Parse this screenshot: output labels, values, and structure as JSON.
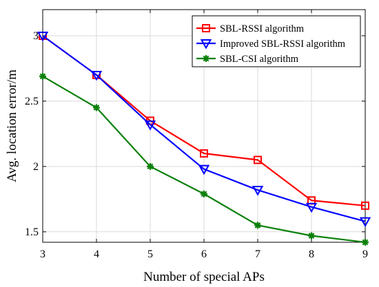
{
  "chart_data": {
    "type": "line",
    "xlabel": "Number of special APs",
    "ylabel": "Avg. location error/m",
    "x": [
      3,
      4,
      5,
      6,
      7,
      8,
      9
    ],
    "xlim": [
      3,
      9
    ],
    "ylim": [
      1.42,
      3.2
    ],
    "xticks": [
      "3",
      "4",
      "5",
      "6",
      "7",
      "8",
      "9"
    ],
    "yticks": [
      1.5,
      2,
      2.5,
      3
    ],
    "ytick_labels": [
      "1.5",
      "2",
      "2.5",
      "3"
    ],
    "grid": true,
    "legend_position": "top-right",
    "series": [
      {
        "name": "SBL-RSSI algorithm",
        "color": "#ff0000",
        "marker": "square",
        "values": [
          3.0,
          2.7,
          2.35,
          2.1,
          2.05,
          1.74,
          1.7
        ]
      },
      {
        "name": "Improved SBL-RSSI algorithm",
        "color": "#0000ff",
        "marker": "triangle-down",
        "values": [
          3.0,
          2.7,
          2.32,
          1.98,
          1.82,
          1.69,
          1.58
        ]
      },
      {
        "name": "SBL-CSI algorithm",
        "color": "#0a800a",
        "marker": "asterisk",
        "values": [
          2.69,
          2.45,
          2.0,
          1.79,
          1.55,
          1.47,
          1.42
        ]
      }
    ]
  }
}
